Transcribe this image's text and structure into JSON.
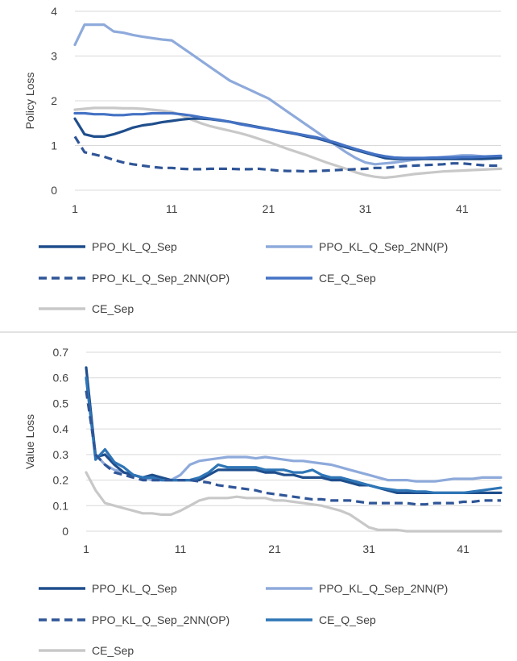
{
  "chart_data": [
    {
      "type": "line",
      "ylabel": "Policy Loss",
      "xlabel": "",
      "ylim": [
        0,
        4
      ],
      "yticks": [
        "0",
        "1",
        "2",
        "3",
        "4"
      ],
      "xlim": [
        1,
        45
      ],
      "xticks": [
        "1",
        "11",
        "21",
        "31",
        "41"
      ],
      "grid": "horizontal",
      "legend": "bottom",
      "x": [
        1,
        2,
        3,
        4,
        5,
        6,
        7,
        8,
        9,
        10,
        11,
        12,
        13,
        14,
        15,
        16,
        17,
        18,
        19,
        20,
        21,
        22,
        23,
        24,
        25,
        26,
        27,
        28,
        29,
        30,
        31,
        32,
        33,
        34,
        35,
        36,
        37,
        38,
        39,
        40,
        41,
        42,
        43,
        44,
        45
      ],
      "series": [
        {
          "name": "PPO_KL_Q_Sep",
          "color": "#1f4e8c",
          "dash": "solid",
          "values": [
            1.6,
            1.25,
            1.2,
            1.2,
            1.25,
            1.32,
            1.4,
            1.45,
            1.48,
            1.52,
            1.55,
            1.58,
            1.6,
            1.6,
            1.59,
            1.56,
            1.53,
            1.49,
            1.45,
            1.41,
            1.37,
            1.33,
            1.29,
            1.25,
            1.2,
            1.16,
            1.1,
            1.03,
            0.96,
            0.9,
            0.84,
            0.78,
            0.72,
            0.7,
            0.7,
            0.7,
            0.7,
            0.7,
            0.7,
            0.7,
            0.7,
            0.7,
            0.7,
            0.71,
            0.72
          ]
        },
        {
          "name": "PPO_KL_Q_Sep_2NN(P)",
          "color": "#8eaadb",
          "dash": "solid",
          "values": [
            3.25,
            3.7,
            3.7,
            3.7,
            3.55,
            3.52,
            3.47,
            3.43,
            3.4,
            3.37,
            3.35,
            3.2,
            3.05,
            2.9,
            2.75,
            2.6,
            2.45,
            2.35,
            2.25,
            2.15,
            2.05,
            1.9,
            1.75,
            1.6,
            1.45,
            1.3,
            1.15,
            1.0,
            0.85,
            0.72,
            0.62,
            0.58,
            0.6,
            0.62,
            0.65,
            0.68,
            0.7,
            0.72,
            0.74,
            0.76,
            0.78,
            0.78,
            0.76,
            0.74,
            0.73
          ]
        },
        {
          "name": "PPO_KL_Q_Sep_2NN(OP)",
          "color": "#2f5597",
          "dash": "dashed",
          "values": [
            1.2,
            0.85,
            0.8,
            0.75,
            0.68,
            0.62,
            0.58,
            0.55,
            0.52,
            0.5,
            0.5,
            0.48,
            0.47,
            0.47,
            0.48,
            0.48,
            0.48,
            0.47,
            0.47,
            0.48,
            0.46,
            0.44,
            0.43,
            0.43,
            0.42,
            0.43,
            0.44,
            0.45,
            0.46,
            0.47,
            0.48,
            0.5,
            0.5,
            0.52,
            0.54,
            0.55,
            0.56,
            0.57,
            0.58,
            0.6,
            0.6,
            0.58,
            0.56,
            0.55,
            0.55
          ]
        },
        {
          "name": "CE_Q_Sep",
          "color": "#4472c4",
          "dash": "solid",
          "values": [
            1.72,
            1.72,
            1.7,
            1.7,
            1.68,
            1.68,
            1.7,
            1.7,
            1.72,
            1.72,
            1.72,
            1.7,
            1.67,
            1.63,
            1.6,
            1.57,
            1.53,
            1.48,
            1.44,
            1.4,
            1.37,
            1.33,
            1.3,
            1.26,
            1.22,
            1.18,
            1.12,
            1.06,
            0.99,
            0.92,
            0.86,
            0.8,
            0.76,
            0.73,
            0.72,
            0.72,
            0.72,
            0.73,
            0.73,
            0.73,
            0.74,
            0.74,
            0.75,
            0.76,
            0.77
          ]
        },
        {
          "name": "CE_Sep",
          "color": "#c8c8c8",
          "dash": "solid",
          "values": [
            1.8,
            1.82,
            1.84,
            1.84,
            1.84,
            1.83,
            1.83,
            1.82,
            1.8,
            1.78,
            1.75,
            1.68,
            1.58,
            1.5,
            1.43,
            1.38,
            1.33,
            1.28,
            1.22,
            1.15,
            1.08,
            1.0,
            0.92,
            0.85,
            0.78,
            0.7,
            0.62,
            0.55,
            0.48,
            0.4,
            0.34,
            0.3,
            0.28,
            0.3,
            0.33,
            0.36,
            0.38,
            0.4,
            0.42,
            0.43,
            0.44,
            0.45,
            0.46,
            0.47,
            0.48
          ]
        }
      ]
    },
    {
      "type": "line",
      "ylabel": "Value Loss",
      "xlabel": "",
      "ylim": [
        0,
        0.7
      ],
      "yticks": [
        "0",
        "0.1",
        "0.2",
        "0.3",
        "0.4",
        "0.5",
        "0.6",
        "0.7"
      ],
      "xlim": [
        1,
        45
      ],
      "xticks": [
        "1",
        "11",
        "21",
        "31",
        "41"
      ],
      "grid": "horizontal",
      "legend": "bottom",
      "x": [
        1,
        2,
        3,
        4,
        5,
        6,
        7,
        8,
        9,
        10,
        11,
        12,
        13,
        14,
        15,
        16,
        17,
        18,
        19,
        20,
        21,
        22,
        23,
        24,
        25,
        26,
        27,
        28,
        29,
        30,
        31,
        32,
        33,
        34,
        35,
        36,
        37,
        38,
        39,
        40,
        41,
        42,
        43,
        44,
        45
      ],
      "series": [
        {
          "name": "PPO_KL_Q_Sep",
          "color": "#1f4e8c",
          "dash": "solid",
          "values": [
            0.64,
            0.29,
            0.3,
            0.26,
            0.23,
            0.22,
            0.21,
            0.22,
            0.21,
            0.2,
            0.2,
            0.2,
            0.2,
            0.22,
            0.24,
            0.24,
            0.24,
            0.24,
            0.24,
            0.23,
            0.23,
            0.22,
            0.22,
            0.21,
            0.21,
            0.21,
            0.2,
            0.2,
            0.19,
            0.18,
            0.18,
            0.17,
            0.16,
            0.15,
            0.15,
            0.15,
            0.15,
            0.15,
            0.15,
            0.15,
            0.15,
            0.15,
            0.15,
            0.15,
            0.15
          ]
        },
        {
          "name": "PPO_KL_Q_Sep_2NN(P)",
          "color": "#8eaadb",
          "dash": "solid",
          "values": [
            0.6,
            0.3,
            0.26,
            0.24,
            0.23,
            0.22,
            0.21,
            0.2,
            0.2,
            0.2,
            0.22,
            0.26,
            0.275,
            0.28,
            0.285,
            0.29,
            0.29,
            0.29,
            0.285,
            0.29,
            0.285,
            0.28,
            0.275,
            0.275,
            0.27,
            0.265,
            0.26,
            0.25,
            0.24,
            0.23,
            0.22,
            0.21,
            0.2,
            0.2,
            0.2,
            0.195,
            0.195,
            0.195,
            0.2,
            0.205,
            0.205,
            0.205,
            0.21,
            0.21,
            0.21
          ]
        },
        {
          "name": "PPO_KL_Q_Sep_2NN(OP)",
          "color": "#2f5597",
          "dash": "dashed",
          "values": [
            0.55,
            0.3,
            0.26,
            0.23,
            0.22,
            0.21,
            0.2,
            0.2,
            0.2,
            0.2,
            0.2,
            0.2,
            0.195,
            0.19,
            0.18,
            0.175,
            0.17,
            0.165,
            0.16,
            0.15,
            0.145,
            0.14,
            0.135,
            0.13,
            0.125,
            0.125,
            0.12,
            0.12,
            0.12,
            0.115,
            0.11,
            0.11,
            0.11,
            0.11,
            0.11,
            0.105,
            0.105,
            0.11,
            0.11,
            0.11,
            0.115,
            0.115,
            0.12,
            0.12,
            0.12
          ]
        },
        {
          "name": "CE_Q_Sep",
          "color": "#2e75b6",
          "dash": "solid",
          "values": [
            0.6,
            0.28,
            0.32,
            0.27,
            0.25,
            0.22,
            0.21,
            0.21,
            0.2,
            0.2,
            0.2,
            0.2,
            0.21,
            0.23,
            0.26,
            0.25,
            0.25,
            0.25,
            0.25,
            0.24,
            0.24,
            0.24,
            0.23,
            0.23,
            0.24,
            0.22,
            0.21,
            0.21,
            0.2,
            0.19,
            0.18,
            0.17,
            0.165,
            0.16,
            0.16,
            0.155,
            0.155,
            0.15,
            0.15,
            0.15,
            0.15,
            0.155,
            0.16,
            0.165,
            0.17
          ]
        },
        {
          "name": "CE_Sep",
          "color": "#c8c8c8",
          "dash": "solid",
          "values": [
            0.23,
            0.16,
            0.11,
            0.1,
            0.09,
            0.08,
            0.07,
            0.07,
            0.065,
            0.065,
            0.08,
            0.1,
            0.12,
            0.13,
            0.13,
            0.13,
            0.135,
            0.13,
            0.13,
            0.13,
            0.12,
            0.12,
            0.115,
            0.11,
            0.105,
            0.1,
            0.09,
            0.08,
            0.065,
            0.04,
            0.015,
            0.005,
            0.005,
            0.005,
            0.0,
            0.0,
            0.0,
            0.0,
            0.0,
            0.0,
            0.0,
            0.0,
            0.0,
            0.0,
            0.0
          ]
        }
      ]
    }
  ]
}
